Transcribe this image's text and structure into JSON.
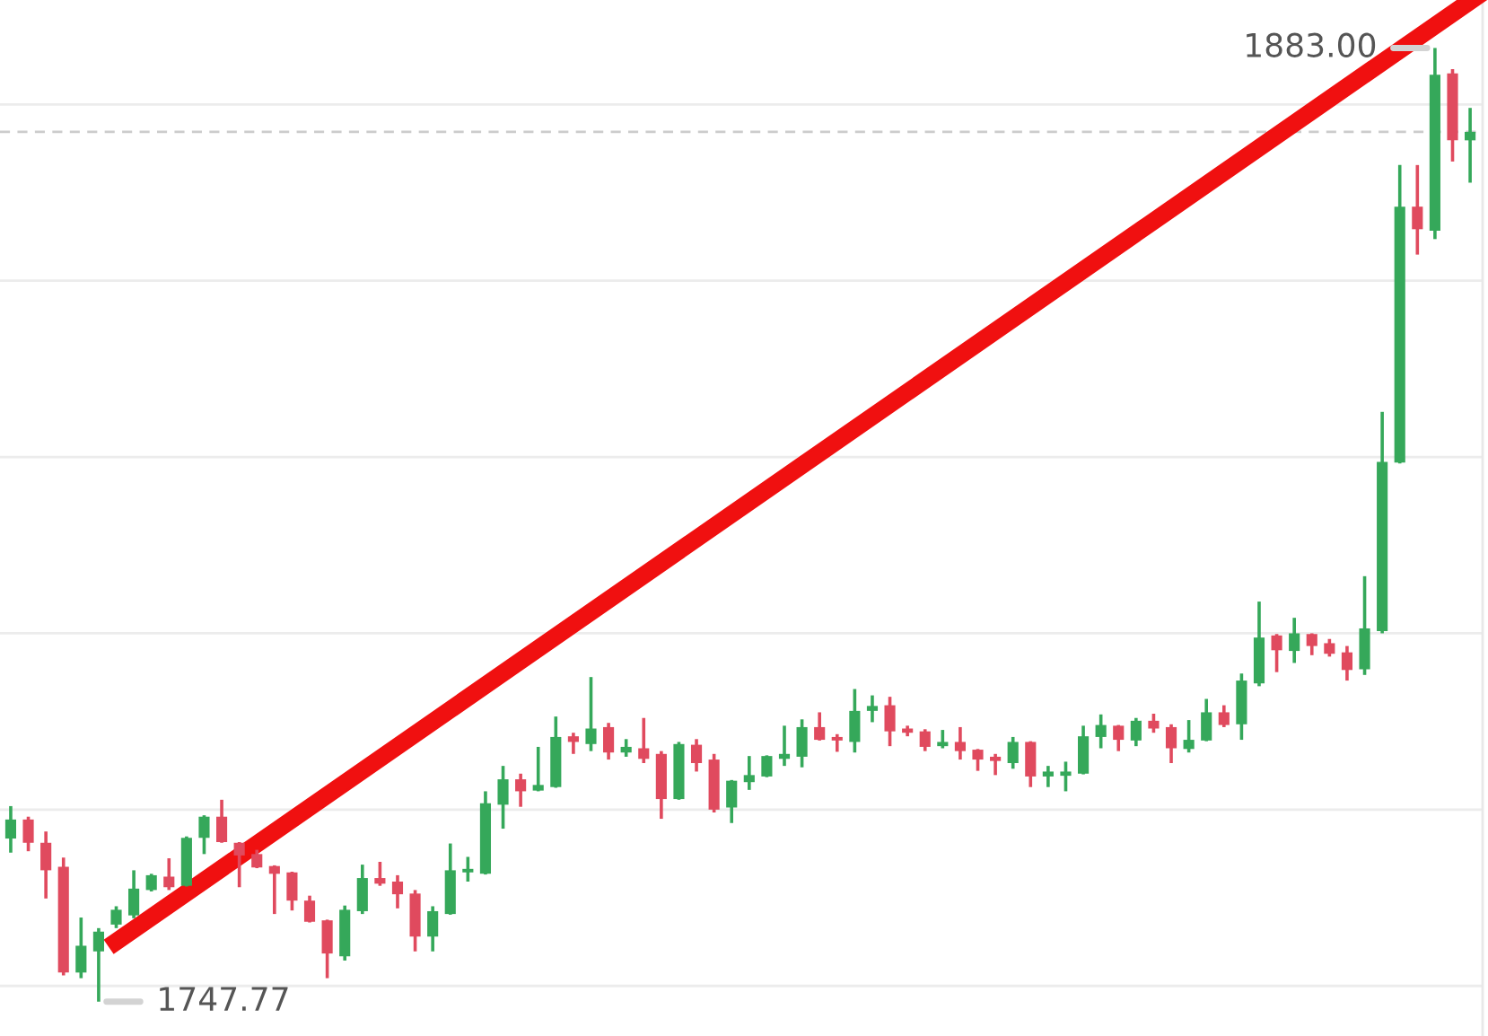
{
  "chart_data": {
    "type": "candlestick",
    "categories": [
      null,
      null,
      null,
      null,
      null,
      null,
      null,
      null,
      null,
      null,
      null,
      null,
      null,
      null,
      null,
      null,
      null,
      null,
      null,
      null,
      null,
      null,
      null,
      null,
      null,
      null,
      null,
      null,
      null,
      null,
      null,
      null,
      null,
      null,
      null,
      null,
      null,
      null,
      null,
      null,
      null,
      null,
      null,
      null,
      null,
      null,
      null,
      null,
      null,
      null,
      null,
      null,
      null,
      null,
      null,
      null,
      null,
      null,
      null,
      null,
      null,
      null,
      null,
      null,
      null,
      null,
      null,
      null,
      null,
      null,
      null,
      null,
      null,
      null,
      null,
      null,
      null,
      null,
      null,
      null,
      null,
      null,
      null,
      null
    ],
    "ohlc": [
      [
        1770.9,
        1775.5,
        1768.9,
        1773.6
      ],
      [
        1773.6,
        1774.0,
        1769.1,
        1770.3
      ],
      [
        1770.3,
        1771.9,
        1762.4,
        1766.4
      ],
      [
        1766.9,
        1768.2,
        1751.5,
        1751.9
      ],
      [
        1751.9,
        1759.7,
        1751.1,
        1755.7
      ],
      [
        1754.9,
        1758.2,
        1747.77,
        1757.7
      ],
      [
        1758.7,
        1761.3,
        1758.2,
        1760.8
      ],
      [
        1760.0,
        1766.4,
        1759.6,
        1763.8
      ],
      [
        1763.6,
        1765.9,
        1763.4,
        1765.7
      ],
      [
        1765.5,
        1768.1,
        1763.6,
        1764.0
      ],
      [
        1764.2,
        1771.2,
        1764.1,
        1771.0
      ],
      [
        1771.0,
        1774.2,
        1768.7,
        1774.0
      ],
      [
        1774.0,
        1776.4,
        1770.3,
        1770.4
      ],
      [
        1770.3,
        1770.4,
        1764.0,
        1768.5
      ],
      [
        1768.7,
        1769.3,
        1766.7,
        1766.8
      ],
      [
        1767.0,
        1767.1,
        1760.2,
        1765.9
      ],
      [
        1766.1,
        1766.2,
        1760.7,
        1762.1
      ],
      [
        1762.1,
        1762.8,
        1759.0,
        1759.1
      ],
      [
        1759.3,
        1759.4,
        1751.1,
        1754.6
      ],
      [
        1754.2,
        1761.4,
        1753.6,
        1760.8
      ],
      [
        1760.6,
        1767.2,
        1760.2,
        1765.3
      ],
      [
        1765.3,
        1767.6,
        1764.2,
        1764.5
      ],
      [
        1764.8,
        1765.7,
        1761.0,
        1763.0
      ],
      [
        1763.1,
        1763.6,
        1754.9,
        1757.0
      ],
      [
        1757.0,
        1761.3,
        1754.9,
        1760.6
      ],
      [
        1760.2,
        1770.2,
        1760.1,
        1766.4
      ],
      [
        1766.1,
        1768.3,
        1764.8,
        1766.6
      ],
      [
        1765.9,
        1777.6,
        1765.8,
        1775.9
      ],
      [
        1775.7,
        1781.2,
        1772.3,
        1779.3
      ],
      [
        1779.3,
        1780.1,
        1775.4,
        1777.6
      ],
      [
        1777.7,
        1783.9,
        1777.6,
        1778.5
      ],
      [
        1778.2,
        1788.2,
        1778.1,
        1785.3
      ],
      [
        1785.4,
        1785.9,
        1782.9,
        1784.6
      ],
      [
        1784.3,
        1793.8,
        1783.3,
        1786.5
      ],
      [
        1786.7,
        1787.3,
        1782.1,
        1783.1
      ],
      [
        1783.1,
        1785.0,
        1782.5,
        1783.9
      ],
      [
        1783.7,
        1788.0,
        1781.6,
        1782.2
      ],
      [
        1782.9,
        1783.3,
        1773.7,
        1776.5
      ],
      [
        1776.5,
        1784.6,
        1776.4,
        1784.3
      ],
      [
        1784.2,
        1785.0,
        1780.4,
        1781.6
      ],
      [
        1782.1,
        1782.9,
        1774.6,
        1775.0
      ],
      [
        1775.3,
        1779.2,
        1773.1,
        1779.1
      ],
      [
        1778.9,
        1782.6,
        1777.8,
        1779.9
      ],
      [
        1779.7,
        1782.7,
        1779.6,
        1782.6
      ],
      [
        1782.2,
        1786.9,
        1781.2,
        1782.9
      ],
      [
        1782.5,
        1787.8,
        1781.0,
        1786.7
      ],
      [
        1786.7,
        1788.8,
        1784.8,
        1784.9
      ],
      [
        1785.3,
        1785.7,
        1783.2,
        1784.8
      ],
      [
        1784.6,
        1792.1,
        1783.1,
        1789.0
      ],
      [
        1789.0,
        1791.2,
        1787.4,
        1789.7
      ],
      [
        1789.8,
        1791.0,
        1784.0,
        1786.1
      ],
      [
        1786.5,
        1786.9,
        1785.4,
        1785.9
      ],
      [
        1786.1,
        1786.4,
        1783.3,
        1783.9
      ],
      [
        1784.0,
        1786.3,
        1783.7,
        1784.6
      ],
      [
        1784.6,
        1786.7,
        1782.1,
        1783.3
      ],
      [
        1783.5,
        1783.6,
        1780.5,
        1782.1
      ],
      [
        1782.5,
        1782.9,
        1779.9,
        1781.9
      ],
      [
        1781.6,
        1785.3,
        1780.8,
        1784.6
      ],
      [
        1784.6,
        1784.7,
        1778.2,
        1779.7
      ],
      [
        1779.7,
        1781.2,
        1778.2,
        1780.4
      ],
      [
        1779.8,
        1781.8,
        1777.6,
        1780.4
      ],
      [
        1780.1,
        1786.9,
        1780.0,
        1785.4
      ],
      [
        1785.3,
        1788.5,
        1783.7,
        1787.0
      ],
      [
        1786.9,
        1787.0,
        1783.3,
        1784.9
      ],
      [
        1784.8,
        1788.0,
        1784.0,
        1787.6
      ],
      [
        1787.6,
        1788.6,
        1785.9,
        1786.5
      ],
      [
        1786.7,
        1787.1,
        1781.6,
        1783.7
      ],
      [
        1783.6,
        1787.7,
        1783.1,
        1784.9
      ],
      [
        1784.8,
        1790.7,
        1784.7,
        1788.8
      ],
      [
        1788.8,
        1789.8,
        1786.7,
        1787.0
      ],
      [
        1787.1,
        1794.3,
        1784.9,
        1793.3
      ],
      [
        1792.9,
        1804.5,
        1792.5,
        1799.4
      ],
      [
        1799.7,
        1799.9,
        1794.5,
        1797.6
      ],
      [
        1797.5,
        1802.2,
        1795.8,
        1800.0
      ],
      [
        1799.9,
        1800.0,
        1796.9,
        1798.2
      ],
      [
        1798.6,
        1799.2,
        1796.7,
        1797.1
      ],
      [
        1797.3,
        1798.2,
        1793.3,
        1794.8
      ],
      [
        1794.9,
        1808.1,
        1794.1,
        1800.7
      ],
      [
        1800.3,
        1831.4,
        1800.0,
        1824.3
      ],
      [
        1824.2,
        1866.4,
        1824.1,
        1860.5
      ],
      [
        1860.5,
        1866.4,
        1853.7,
        1857.3
      ],
      [
        1857.1,
        1883.0,
        1855.9,
        1879.2
      ],
      [
        1879.4,
        1880.0,
        1866.9,
        1869.9
      ],
      [
        1869.9,
        1874.5,
        1863.9,
        1871.1
      ]
    ],
    "colors": [
      "#35a85a",
      "#e04a5e",
      "#e04a5e",
      "#e04a5e",
      "#35a85a",
      "#35a85a",
      "#35a85a",
      "#35a85a",
      "#35a85a",
      "#e04a5e",
      "#35a85a",
      "#35a85a",
      "#e04a5e",
      "#e04a5e",
      "#e04a5e",
      "#e04a5e",
      "#e04a5e",
      "#e04a5e",
      "#e04a5e",
      "#35a85a",
      "#35a85a",
      "#e04a5e",
      "#e04a5e",
      "#e04a5e",
      "#35a85a",
      "#35a85a",
      "#35a85a",
      "#35a85a",
      "#35a85a",
      "#e04a5e",
      "#35a85a",
      "#35a85a",
      "#e04a5e",
      "#35a85a",
      "#e04a5e",
      "#35a85a",
      "#e04a5e",
      "#e04a5e",
      "#35a85a",
      "#e04a5e",
      "#e04a5e",
      "#35a85a",
      "#35a85a",
      "#35a85a",
      "#35a85a",
      "#35a85a",
      "#e04a5e",
      "#e04a5e",
      "#35a85a",
      "#35a85a",
      "#e04a5e",
      "#e04a5e",
      "#e04a5e",
      "#35a85a",
      "#e04a5e",
      "#e04a5e",
      "#e04a5e",
      "#35a85a",
      "#e04a5e",
      "#35a85a",
      "#35a85a",
      "#35a85a",
      "#35a85a",
      "#e04a5e",
      "#35a85a",
      "#e04a5e",
      "#e04a5e",
      "#35a85a",
      "#35a85a",
      "#e04a5e",
      "#35a85a",
      "#35a85a",
      "#e04a5e",
      "#35a85a",
      "#e04a5e",
      "#e04a5e",
      "#e04a5e",
      "#35a85a",
      "#35a85a",
      "#35a85a",
      "#e04a5e",
      "#35a85a",
      "#e04a5e",
      "#35a85a"
    ],
    "yticks": [
      {
        "value": 1750,
        "label": null
      },
      {
        "value": 1775,
        "label": null
      },
      {
        "value": 1800,
        "label": null
      },
      {
        "value": 1825,
        "label": null
      },
      {
        "value": 1850,
        "label": null
      },
      {
        "value": 1875,
        "label": null
      }
    ],
    "grid": "y",
    "ref_lines": [
      {
        "axis": "y",
        "value": 1871.1,
        "color": "#cccccc",
        "line_style": "dashed"
      }
    ],
    "annotations": [
      "1883.00",
      "1747.77"
    ]
  }
}
